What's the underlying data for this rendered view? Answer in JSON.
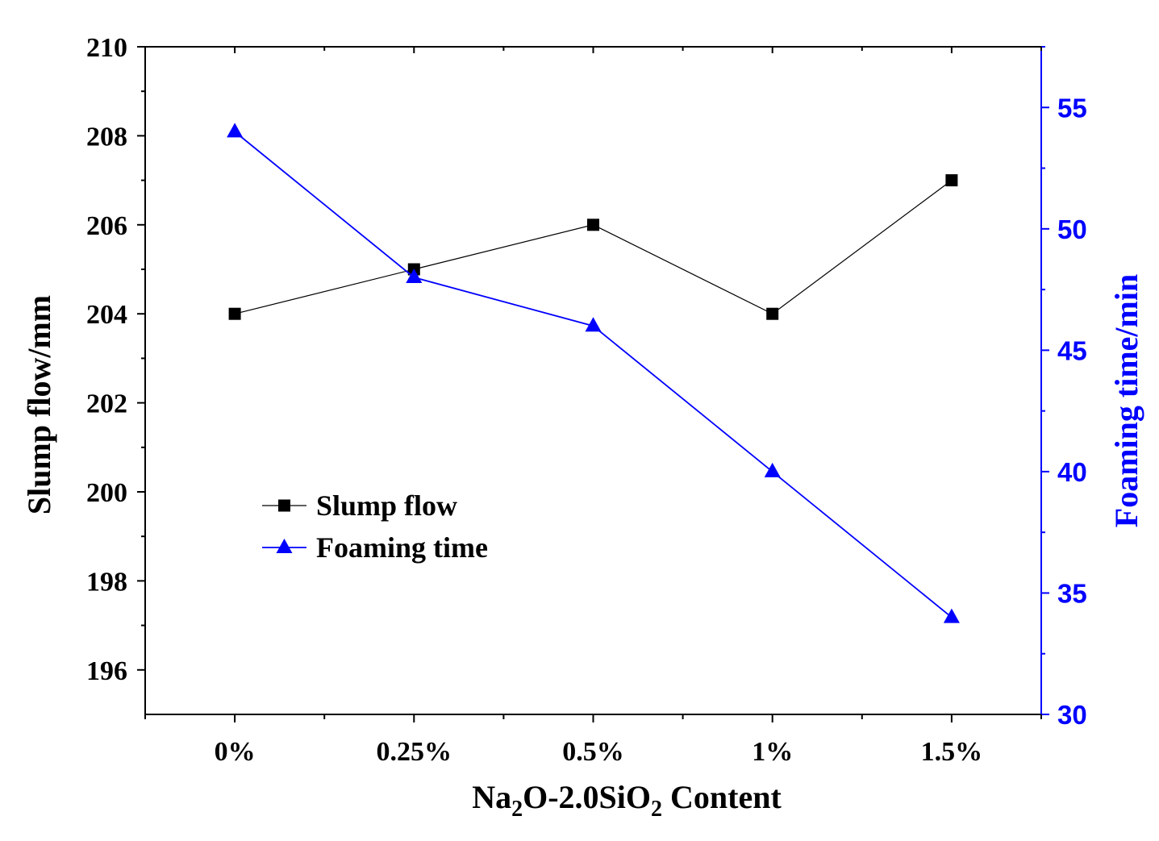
{
  "chart_data": {
    "type": "line",
    "title": "",
    "categories": [
      "0%",
      "0.25%",
      "0.5%",
      "1%",
      "1.5%"
    ],
    "xlabel": {
      "parts": [
        {
          "text": "Na",
          "sub": false
        },
        {
          "text": "2",
          "sub": true
        },
        {
          "text": "O-2.0SiO",
          "sub": false
        },
        {
          "text": "2",
          "sub": true
        },
        {
          "text": " Content",
          "sub": false
        }
      ]
    },
    "ylabel_left": "Slump flow/mm",
    "ylabel_right": "Foaming time/min",
    "ylim_left": [
      195,
      210
    ],
    "yticks_left": [
      "196",
      "198",
      "200",
      "202",
      "204",
      "206",
      "208",
      "210"
    ],
    "ylim_right": [
      30,
      57.5
    ],
    "yticks_right": [
      "30",
      "35",
      "40",
      "45",
      "50",
      "55"
    ],
    "series": [
      {
        "name": "Slump flow",
        "axis": "left",
        "marker": "square",
        "color": "#000000",
        "values": [
          204,
          205,
          206,
          204,
          207
        ]
      },
      {
        "name": "Foaming time",
        "axis": "right",
        "marker": "triangle",
        "color": "#0000ff",
        "values": [
          54,
          48,
          46,
          40,
          34
        ]
      }
    ],
    "legend": {
      "position": "center-left"
    },
    "grid": false,
    "colors": {
      "left_axis": "#000000",
      "right_axis": "#0000ff"
    }
  }
}
